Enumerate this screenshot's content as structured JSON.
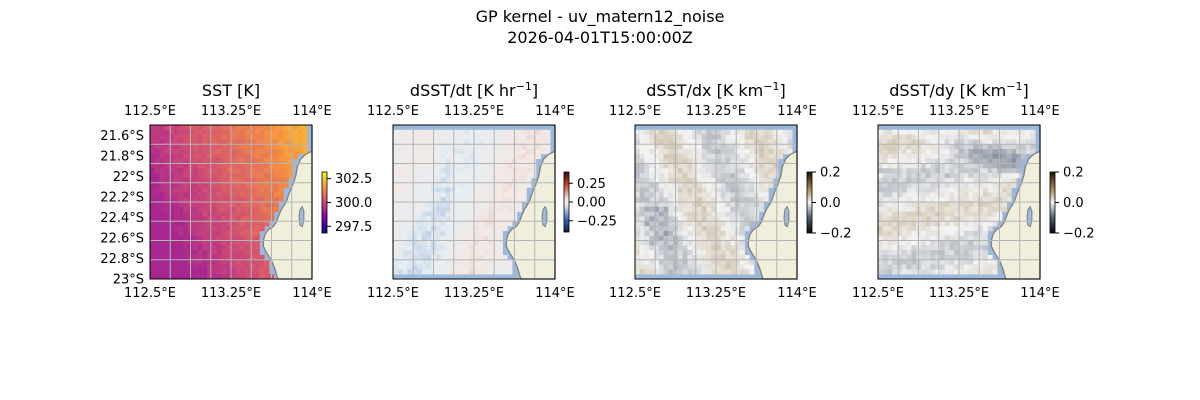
{
  "figure": {
    "title_line1": "GP kernel - uv_matern12_noise",
    "title_line2": "2026-04-01T15:00:00Z"
  },
  "colors": {
    "land": "#efefdb",
    "ocean": "#9bb8df",
    "coast": "#808080",
    "grid": "#b4b4b4"
  },
  "chart_data": [
    {
      "type": "heatmap",
      "title": "SST [K]",
      "x_ticks": [
        112.5,
        113.25,
        114.0
      ],
      "x_tick_labels": [
        "112.5°E",
        "113.25°E",
        "114°E"
      ],
      "x_tick_labels_bottom": [
        "112.5°E",
        "113.25°E",
        "114°E"
      ],
      "y_ticks": [
        -21.6,
        -21.8,
        -22.0,
        -22.2,
        -22.4,
        -22.6,
        -22.8,
        -23.0
      ],
      "y_tick_labels": [
        "21.6°S",
        "21.8°S",
        "22°S",
        "22.2°S",
        "22.4°S",
        "22.6°S",
        "22.8°S",
        "23°S"
      ],
      "xlim": [
        112.5,
        114.0
      ],
      "ylim": [
        -23.0,
        -21.5
      ],
      "colorbar": {
        "ticks": [
          302.5,
          300.0,
          297.5
        ],
        "tick_labels": [
          "302.5",
          "300.0",
          "297.5"
        ],
        "range": [
          296.8,
          303.2
        ],
        "cmap": "plasma"
      },
      "field_model": "sst"
    },
    {
      "type": "heatmap",
      "title_text": "dSST/dt [K hr",
      "title_sup": "−1",
      "title_end": "]",
      "x_tick_labels": [
        "112.5°E",
        "113.25°E",
        "114°E"
      ],
      "x_tick_labels_bottom": [
        "112.5°E",
        "113.25°E",
        "114°E"
      ],
      "xlim": [
        112.5,
        114.0
      ],
      "ylim": [
        -23.0,
        -21.5
      ],
      "colorbar": {
        "ticks": [
          0.25,
          0.0,
          -0.25
        ],
        "tick_labels": [
          "0.25",
          "0.00",
          "−0.25"
        ],
        "range": [
          -0.4,
          0.4
        ],
        "cmap": "balance"
      },
      "field_model": "dt"
    },
    {
      "type": "heatmap",
      "title_text": "dSST/dx [K km",
      "title_sup": "−1",
      "title_end": "]",
      "x_tick_labels": [
        "112.5°E",
        "113.25°E",
        "114°E"
      ],
      "x_tick_labels_bottom": [
        "112.5°E",
        "113.25°E",
        "114°E"
      ],
      "xlim": [
        112.5,
        114.0
      ],
      "ylim": [
        -23.0,
        -21.5
      ],
      "colorbar": {
        "ticks": [
          0.2,
          0.0,
          -0.2
        ],
        "tick_labels": [
          "0.2",
          "0.0",
          "−0.2"
        ],
        "range": [
          -0.2,
          0.2
        ],
        "cmap": "diff"
      },
      "field_model": "dx"
    },
    {
      "type": "heatmap",
      "title_text": "dSST/dy [K km",
      "title_sup": "−1",
      "title_end": "]",
      "x_tick_labels": [
        "112.5°E",
        "113.25°E",
        "114°E"
      ],
      "x_tick_labels_bottom": [
        "112.5°E",
        "113.25°E",
        "114°E"
      ],
      "xlim": [
        112.5,
        114.0
      ],
      "ylim": [
        -23.0,
        -21.5
      ],
      "colorbar": {
        "ticks": [
          0.2,
          0.0,
          -0.2
        ],
        "tick_labels": [
          "0.2",
          "0.0",
          "−0.2"
        ],
        "range": [
          -0.2,
          0.2
        ],
        "cmap": "diff"
      },
      "field_model": "dy"
    }
  ]
}
